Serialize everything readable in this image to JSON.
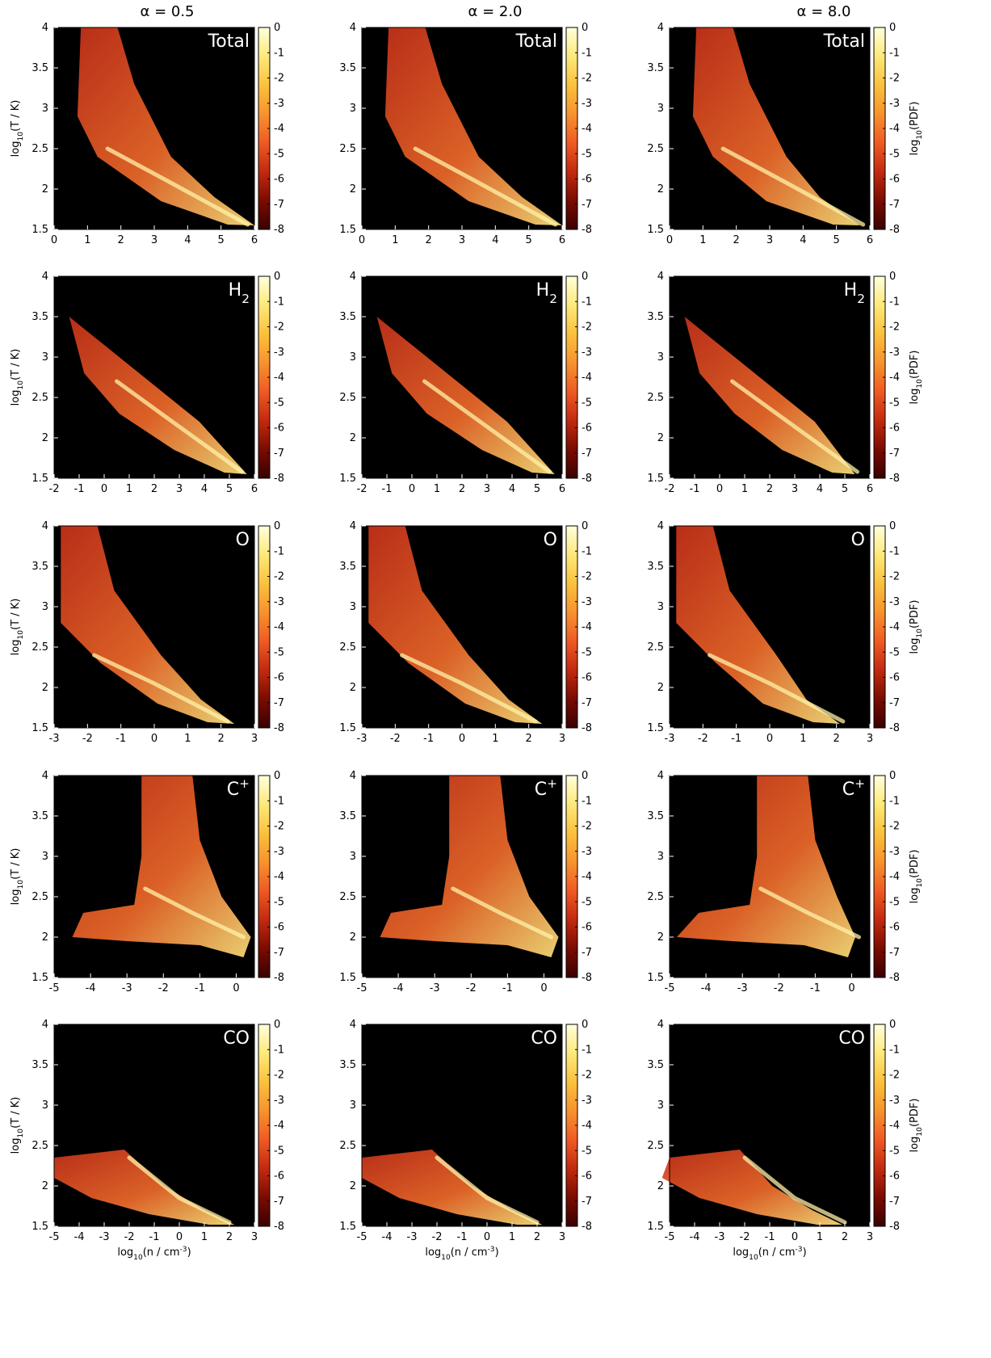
{
  "figure": {
    "column_titles": [
      "α = 0.5",
      "α = 2.0",
      "α = 8.0"
    ],
    "row_panel_labels": [
      "Total",
      "H",
      "O",
      "C",
      "CO"
    ],
    "row_panel_label_sup": [
      "",
      "",
      "",
      "+",
      ""
    ],
    "row_panel_label_sub": [
      "",
      "2",
      "",
      "",
      ""
    ]
  },
  "colors": {
    "background": "#000000",
    "colormap": [
      "#3a0000",
      "#7a0c00",
      "#c22a10",
      "#ef5a24",
      "#f7922e",
      "#fac13c",
      "#fde97a",
      "#ffffdc"
    ]
  },
  "chart_data": [
    {
      "type": "heatmap",
      "rows": [
        "Total",
        "H2",
        "O",
        "C+",
        "CO"
      ],
      "columns": [
        "α = 0.5",
        "α = 2.0",
        "α = 8.0"
      ],
      "ylabel": "log10(T / K)",
      "ylabel_parts": [
        "log",
        "10",
        "(T / K)"
      ],
      "xlabel": "log10(n / cm-3)",
      "xlabel_parts": [
        "log",
        "10",
        "(n / cm",
        "-3",
        ")"
      ],
      "colorbar_label": "log10(PDF)",
      "colorbar_label_parts": [
        "log",
        "10",
        "(PDF)"
      ],
      "ylim": [
        1.5,
        4
      ],
      "yticks": [
        "1.5",
        "2",
        "2.5",
        "3",
        "3.5",
        "4"
      ],
      "colorbar_range": [
        -8,
        0
      ],
      "colorbar_ticks": [
        "0",
        "-1",
        "-2",
        "-3",
        "-4",
        "-5",
        "-6",
        "-7",
        "-8"
      ],
      "xlim_by_row": [
        [
          0,
          6
        ],
        [
          -2,
          6
        ],
        [
          -3,
          3
        ],
        [
          -5,
          0.5
        ],
        [
          -5,
          3
        ]
      ],
      "xticks_by_row": [
        [
          "0",
          "1",
          "2",
          "3",
          "4",
          "5",
          "6"
        ],
        [
          "-2",
          "-1",
          "0",
          "1",
          "2",
          "3",
          "4",
          "5",
          "6"
        ],
        [
          "-3",
          "-2",
          "-1",
          "0",
          "1",
          "2",
          "3"
        ],
        [
          "-5",
          "-4",
          "-3",
          "-2",
          "-1",
          "0"
        ],
        [
          "-5",
          "-4",
          "-3",
          "-2",
          "-1",
          "0",
          "1",
          "2",
          "3"
        ]
      ]
    }
  ]
}
